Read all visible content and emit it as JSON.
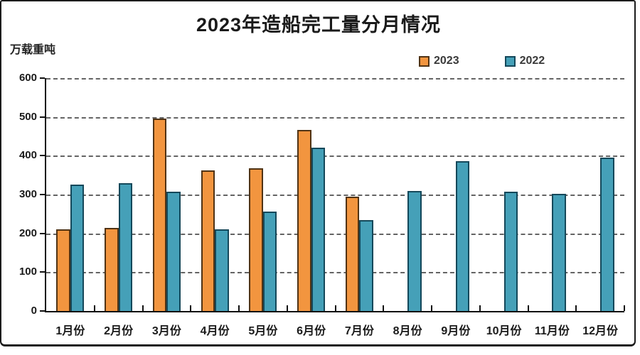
{
  "title": "2023年造船完工量分月情况",
  "unit_label": "万载重吨",
  "frame_color": "#1b1b1b",
  "chart_data": {
    "type": "bar",
    "title": "2023年造船完工量分月情况",
    "ylabel": "万载重吨",
    "xlabel": "",
    "categories": [
      "1月份",
      "2月份",
      "3月份",
      "4月份",
      "5月份",
      "6月份",
      "7月份",
      "8月份",
      "9月份",
      "10月份",
      "11月份",
      "12月份"
    ],
    "series": [
      {
        "name": "2023",
        "color": "#F2953F",
        "border_color": "#503314",
        "values": [
          211,
          214,
          495,
          363,
          368,
          467,
          295,
          null,
          null,
          null,
          null,
          null
        ]
      },
      {
        "name": "2022",
        "color": "#45A0B8",
        "border_color": "#14485A",
        "values": [
          326,
          329,
          307,
          211,
          257,
          421,
          234,
          309,
          386,
          307,
          302,
          395
        ]
      }
    ],
    "ylim": [
      0,
      600
    ],
    "y_ticks": [
      0,
      100,
      200,
      300,
      400,
      500,
      600
    ],
    "grid": "horizontal-dashed",
    "legend_position": "top-right"
  }
}
